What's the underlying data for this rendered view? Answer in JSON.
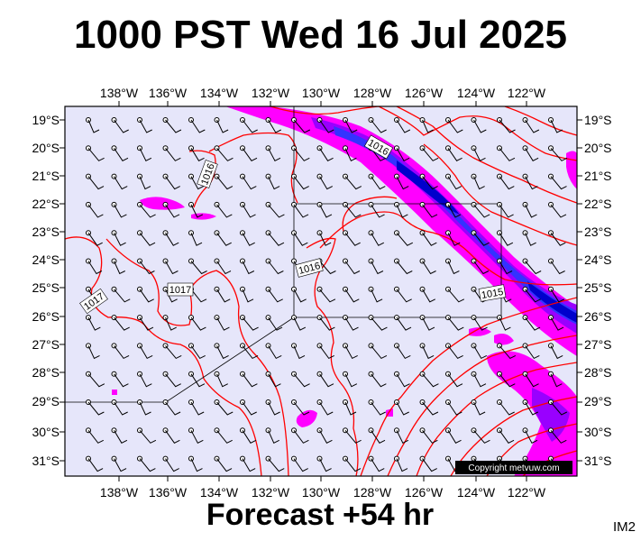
{
  "title": "1000 PST Wed 16 Jul 2025",
  "subtitle": "Forecast +54 hr",
  "image_tag": "IM2",
  "copyright": "Copyright metvuw.com",
  "map": {
    "longitude_labels": [
      "138°W",
      "136°W",
      "134°W",
      "132°W",
      "130°W",
      "128°W",
      "126°W",
      "124°W",
      "122°W"
    ],
    "latitude_labels": [
      "19°S",
      "20°S",
      "21°S",
      "22°S",
      "23°S",
      "24°S",
      "25°S",
      "26°S",
      "27°S",
      "28°S",
      "29°S",
      "30°S",
      "31°S"
    ],
    "isobar_labels": [
      "1016",
      "1016",
      "1016",
      "1017",
      "1017",
      "1015"
    ],
    "colors": {
      "ocean": "#e6e6fa",
      "isobar": "#ff0000",
      "rain_light": "#ff00ff",
      "rain_moderate": "#9900ff",
      "rain_heavy": "#3333ff",
      "rain_very_heavy": "#0000cc"
    }
  }
}
